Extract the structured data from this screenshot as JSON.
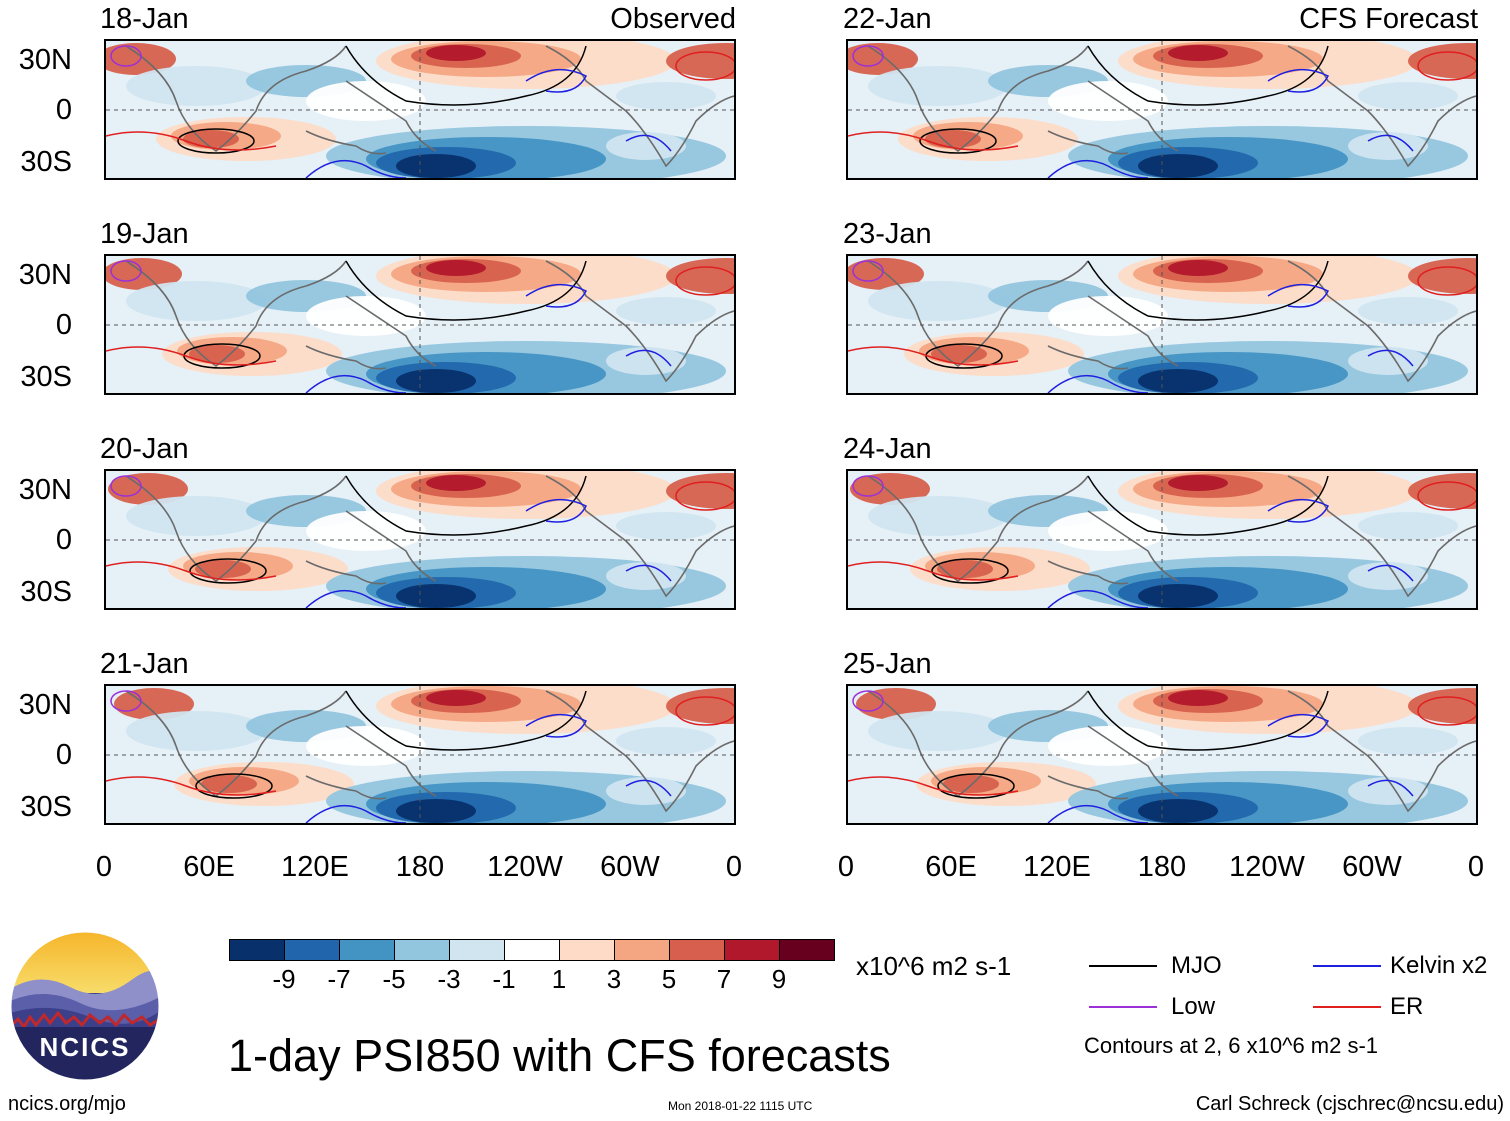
{
  "panel_tags": {
    "observed": "Observed",
    "forecast": "CFS Forecast"
  },
  "observed_dates": [
    "18-Jan",
    "19-Jan",
    "20-Jan",
    "21-Jan"
  ],
  "forecast_dates": [
    "22-Jan",
    "23-Jan",
    "24-Jan",
    "25-Jan"
  ],
  "lat_labels": [
    "30N",
    "0",
    "30S"
  ],
  "lon_labels": [
    "0",
    "60E",
    "120E",
    "180",
    "120W",
    "60W",
    "0"
  ],
  "colorbar": {
    "colors": [
      "#08306b",
      "#2166ac",
      "#4393c3",
      "#92c5de",
      "#d1e5f0",
      "#ffffff",
      "#fddbc7",
      "#f4a582",
      "#d6604d",
      "#b2182b",
      "#67001f"
    ],
    "labels": [
      "-9",
      "-7",
      "-5",
      "-3",
      "-1",
      "1",
      "3",
      "5",
      "7",
      "9"
    ],
    "units": "x10^6 m2 s-1"
  },
  "legend": {
    "mjo": {
      "label": "MJO",
      "color": "#000000"
    },
    "kelvin": {
      "label": "Kelvin x2",
      "color": "#1f1fe0"
    },
    "low": {
      "label": "Low",
      "color": "#9b30d8"
    },
    "er": {
      "label": "ER",
      "color": "#e01f1f"
    },
    "contours_note": "Contours at 2, 6 x10^6 m2 s-1"
  },
  "title": "1-day PSI850 with CFS forecasts",
  "logo_text": "NCICS",
  "footer": {
    "site": "ncics.org/mjo",
    "timestamp": "Mon 2018-01-22 1115 UTC",
    "author": "Carl Schreck (cjschrec@ncsu.edu)"
  }
}
